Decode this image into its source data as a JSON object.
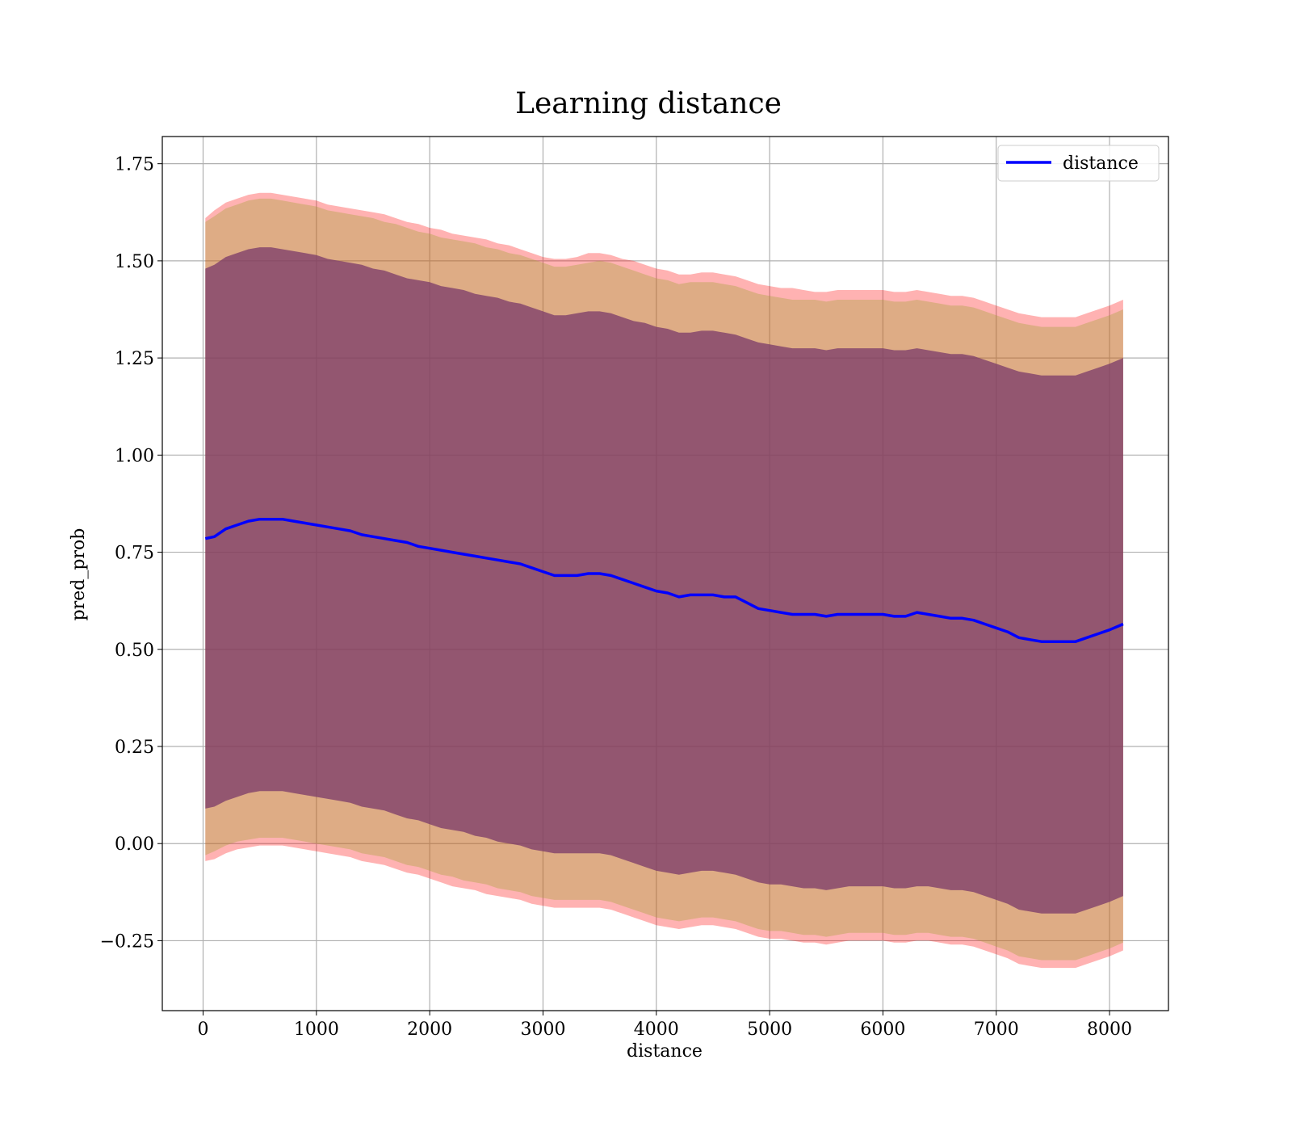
{
  "chart_data": {
    "type": "line",
    "title": "Learning distance",
    "xlabel": "distance",
    "ylabel": "pred_prob",
    "xlim": [
      -360,
      8520
    ],
    "ylim": [
      -0.43,
      1.82
    ],
    "xticks": [
      0,
      1000,
      2000,
      3000,
      4000,
      5000,
      6000,
      7000,
      8000
    ],
    "xtick_labels": [
      "0",
      "1000",
      "2000",
      "3000",
      "4000",
      "5000",
      "6000",
      "7000",
      "8000"
    ],
    "yticks": [
      -0.25,
      0.0,
      0.25,
      0.5,
      0.75,
      1.0,
      1.25,
      1.5,
      1.75
    ],
    "ytick_labels": [
      "−0.25",
      "0.00",
      "0.25",
      "0.50",
      "0.75",
      "1.00",
      "1.25",
      "1.50",
      "1.75"
    ],
    "grid": true,
    "legend": {
      "placement": "upper-right",
      "entries": [
        "distance"
      ]
    },
    "colors": {
      "line": "#0000ff",
      "band_outer": "#ff0000",
      "band_middle": "#a0a030",
      "band_inner": "#7a3a6a",
      "grid": "#b0b0b0"
    },
    "series": [
      {
        "name": "distance",
        "x": [
          20,
          100,
          200,
          300,
          400,
          500,
          600,
          700,
          800,
          900,
          1000,
          1100,
          1200,
          1300,
          1400,
          1500,
          1600,
          1700,
          1800,
          1900,
          2000,
          2100,
          2200,
          2300,
          2400,
          2500,
          2600,
          2700,
          2800,
          2900,
          3000,
          3100,
          3200,
          3300,
          3400,
          3500,
          3600,
          3700,
          3800,
          3900,
          4000,
          4100,
          4200,
          4300,
          4400,
          4500,
          4600,
          4700,
          4800,
          4900,
          5000,
          5100,
          5200,
          5300,
          5400,
          5500,
          5600,
          5700,
          5800,
          5900,
          6000,
          6100,
          6200,
          6300,
          6400,
          6500,
          6600,
          6700,
          6800,
          6900,
          7000,
          7100,
          7200,
          7300,
          7400,
          7500,
          7600,
          7700,
          7800,
          7900,
          8000,
          8120
        ],
        "y": [
          0.785,
          0.79,
          0.81,
          0.82,
          0.83,
          0.835,
          0.835,
          0.835,
          0.83,
          0.825,
          0.82,
          0.815,
          0.81,
          0.805,
          0.795,
          0.79,
          0.785,
          0.78,
          0.775,
          0.765,
          0.76,
          0.755,
          0.75,
          0.745,
          0.74,
          0.735,
          0.73,
          0.725,
          0.72,
          0.71,
          0.7,
          0.69,
          0.69,
          0.69,
          0.695,
          0.695,
          0.69,
          0.68,
          0.67,
          0.66,
          0.65,
          0.645,
          0.635,
          0.64,
          0.64,
          0.64,
          0.635,
          0.635,
          0.62,
          0.605,
          0.6,
          0.595,
          0.59,
          0.59,
          0.59,
          0.585,
          0.59,
          0.59,
          0.59,
          0.59,
          0.59,
          0.585,
          0.585,
          0.595,
          0.59,
          0.585,
          0.58,
          0.58,
          0.575,
          0.565,
          0.555,
          0.545,
          0.53,
          0.525,
          0.52,
          0.52,
          0.52,
          0.52,
          0.53,
          0.54,
          0.55,
          0.565
        ],
        "outer_upper": [
          1.61,
          1.63,
          1.65,
          1.66,
          1.67,
          1.675,
          1.675,
          1.67,
          1.665,
          1.66,
          1.655,
          1.645,
          1.64,
          1.635,
          1.63,
          1.625,
          1.62,
          1.61,
          1.6,
          1.595,
          1.585,
          1.58,
          1.57,
          1.565,
          1.56,
          1.555,
          1.545,
          1.54,
          1.53,
          1.52,
          1.51,
          1.505,
          1.505,
          1.51,
          1.52,
          1.52,
          1.515,
          1.505,
          1.5,
          1.49,
          1.48,
          1.475,
          1.465,
          1.465,
          1.47,
          1.47,
          1.465,
          1.46,
          1.45,
          1.44,
          1.435,
          1.43,
          1.43,
          1.425,
          1.42,
          1.42,
          1.425,
          1.425,
          1.425,
          1.425,
          1.425,
          1.42,
          1.42,
          1.425,
          1.42,
          1.415,
          1.41,
          1.41,
          1.405,
          1.395,
          1.385,
          1.375,
          1.365,
          1.36,
          1.355,
          1.355,
          1.355,
          1.355,
          1.365,
          1.375,
          1.385,
          1.4
        ],
        "outer_lower": [
          -0.045,
          -0.04,
          -0.025,
          -0.015,
          -0.01,
          -0.005,
          -0.005,
          -0.005,
          -0.01,
          -0.015,
          -0.02,
          -0.025,
          -0.03,
          -0.035,
          -0.045,
          -0.05,
          -0.055,
          -0.065,
          -0.075,
          -0.08,
          -0.09,
          -0.1,
          -0.11,
          -0.115,
          -0.12,
          -0.13,
          -0.135,
          -0.14,
          -0.145,
          -0.155,
          -0.16,
          -0.165,
          -0.165,
          -0.165,
          -0.165,
          -0.165,
          -0.17,
          -0.18,
          -0.19,
          -0.2,
          -0.21,
          -0.215,
          -0.22,
          -0.215,
          -0.21,
          -0.21,
          -0.215,
          -0.22,
          -0.23,
          -0.24,
          -0.245,
          -0.245,
          -0.25,
          -0.255,
          -0.255,
          -0.26,
          -0.255,
          -0.25,
          -0.25,
          -0.25,
          -0.25,
          -0.255,
          -0.255,
          -0.25,
          -0.25,
          -0.255,
          -0.26,
          -0.26,
          -0.265,
          -0.275,
          -0.285,
          -0.295,
          -0.31,
          -0.315,
          -0.32,
          -0.32,
          -0.32,
          -0.32,
          -0.31,
          -0.3,
          -0.29,
          -0.275
        ],
        "middle_upper": [
          1.6,
          1.615,
          1.635,
          1.645,
          1.655,
          1.66,
          1.66,
          1.655,
          1.65,
          1.645,
          1.64,
          1.63,
          1.625,
          1.62,
          1.615,
          1.61,
          1.6,
          1.595,
          1.585,
          1.575,
          1.57,
          1.56,
          1.555,
          1.55,
          1.545,
          1.535,
          1.53,
          1.52,
          1.515,
          1.505,
          1.495,
          1.485,
          1.485,
          1.49,
          1.495,
          1.5,
          1.495,
          1.485,
          1.475,
          1.465,
          1.455,
          1.45,
          1.44,
          1.445,
          1.445,
          1.445,
          1.44,
          1.435,
          1.425,
          1.415,
          1.41,
          1.405,
          1.4,
          1.4,
          1.4,
          1.395,
          1.4,
          1.4,
          1.4,
          1.4,
          1.4,
          1.395,
          1.395,
          1.4,
          1.395,
          1.39,
          1.385,
          1.385,
          1.38,
          1.37,
          1.36,
          1.35,
          1.34,
          1.335,
          1.33,
          1.33,
          1.33,
          1.33,
          1.34,
          1.35,
          1.36,
          1.375
        ],
        "middle_lower": [
          -0.03,
          -0.02,
          -0.005,
          0.005,
          0.01,
          0.015,
          0.015,
          0.015,
          0.01,
          0.005,
          0.0,
          -0.005,
          -0.01,
          -0.015,
          -0.025,
          -0.03,
          -0.035,
          -0.045,
          -0.055,
          -0.06,
          -0.07,
          -0.08,
          -0.085,
          -0.095,
          -0.1,
          -0.105,
          -0.115,
          -0.12,
          -0.125,
          -0.135,
          -0.14,
          -0.145,
          -0.145,
          -0.145,
          -0.145,
          -0.145,
          -0.15,
          -0.16,
          -0.17,
          -0.18,
          -0.19,
          -0.195,
          -0.2,
          -0.195,
          -0.19,
          -0.19,
          -0.195,
          -0.2,
          -0.21,
          -0.22,
          -0.225,
          -0.225,
          -0.23,
          -0.235,
          -0.235,
          -0.24,
          -0.235,
          -0.23,
          -0.23,
          -0.23,
          -0.23,
          -0.235,
          -0.235,
          -0.23,
          -0.23,
          -0.235,
          -0.24,
          -0.24,
          -0.245,
          -0.255,
          -0.265,
          -0.275,
          -0.29,
          -0.295,
          -0.3,
          -0.3,
          -0.3,
          -0.3,
          -0.29,
          -0.28,
          -0.27,
          -0.255
        ],
        "inner_upper": [
          1.48,
          1.49,
          1.51,
          1.52,
          1.53,
          1.535,
          1.535,
          1.53,
          1.525,
          1.52,
          1.515,
          1.505,
          1.5,
          1.495,
          1.49,
          1.48,
          1.475,
          1.465,
          1.455,
          1.45,
          1.445,
          1.435,
          1.43,
          1.425,
          1.415,
          1.41,
          1.405,
          1.395,
          1.39,
          1.38,
          1.37,
          1.36,
          1.36,
          1.365,
          1.37,
          1.37,
          1.365,
          1.355,
          1.345,
          1.34,
          1.33,
          1.325,
          1.315,
          1.315,
          1.32,
          1.32,
          1.315,
          1.31,
          1.3,
          1.29,
          1.285,
          1.28,
          1.275,
          1.275,
          1.275,
          1.27,
          1.275,
          1.275,
          1.275,
          1.275,
          1.275,
          1.27,
          1.27,
          1.275,
          1.27,
          1.265,
          1.26,
          1.26,
          1.255,
          1.245,
          1.235,
          1.225,
          1.215,
          1.21,
          1.205,
          1.205,
          1.205,
          1.205,
          1.215,
          1.225,
          1.235,
          1.25
        ],
        "inner_lower": [
          0.09,
          0.095,
          0.11,
          0.12,
          0.13,
          0.135,
          0.135,
          0.135,
          0.13,
          0.125,
          0.12,
          0.115,
          0.11,
          0.105,
          0.095,
          0.09,
          0.085,
          0.075,
          0.065,
          0.06,
          0.05,
          0.04,
          0.035,
          0.03,
          0.02,
          0.015,
          0.005,
          0.0,
          -0.005,
          -0.015,
          -0.02,
          -0.025,
          -0.025,
          -0.025,
          -0.025,
          -0.025,
          -0.03,
          -0.04,
          -0.05,
          -0.06,
          -0.07,
          -0.075,
          -0.08,
          -0.075,
          -0.07,
          -0.07,
          -0.075,
          -0.08,
          -0.09,
          -0.1,
          -0.105,
          -0.105,
          -0.11,
          -0.115,
          -0.115,
          -0.12,
          -0.115,
          -0.11,
          -0.11,
          -0.11,
          -0.11,
          -0.115,
          -0.115,
          -0.11,
          -0.11,
          -0.115,
          -0.12,
          -0.12,
          -0.125,
          -0.135,
          -0.145,
          -0.155,
          -0.17,
          -0.175,
          -0.18,
          -0.18,
          -0.18,
          -0.18,
          -0.17,
          -0.16,
          -0.15,
          -0.135
        ]
      }
    ]
  }
}
